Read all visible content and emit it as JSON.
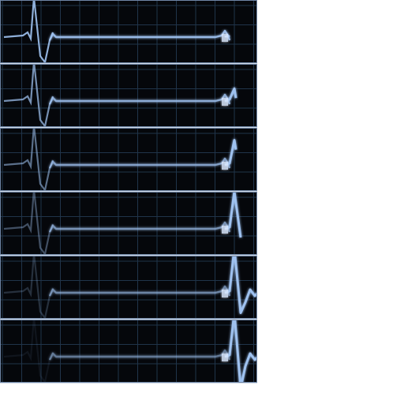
{
  "sequence": {
    "frame_count": 6,
    "grid_color": "#20344a",
    "trace_color": "#9fc2f0",
    "trace_glow_color": "#5c86c4",
    "background_color": "#05070b",
    "border_color": "#6f86a6",
    "description_icon": "ecg-trace-icon",
    "frame_progress": [
      0,
      0.2,
      0.4,
      0.6,
      0.8,
      1.0
    ]
  }
}
